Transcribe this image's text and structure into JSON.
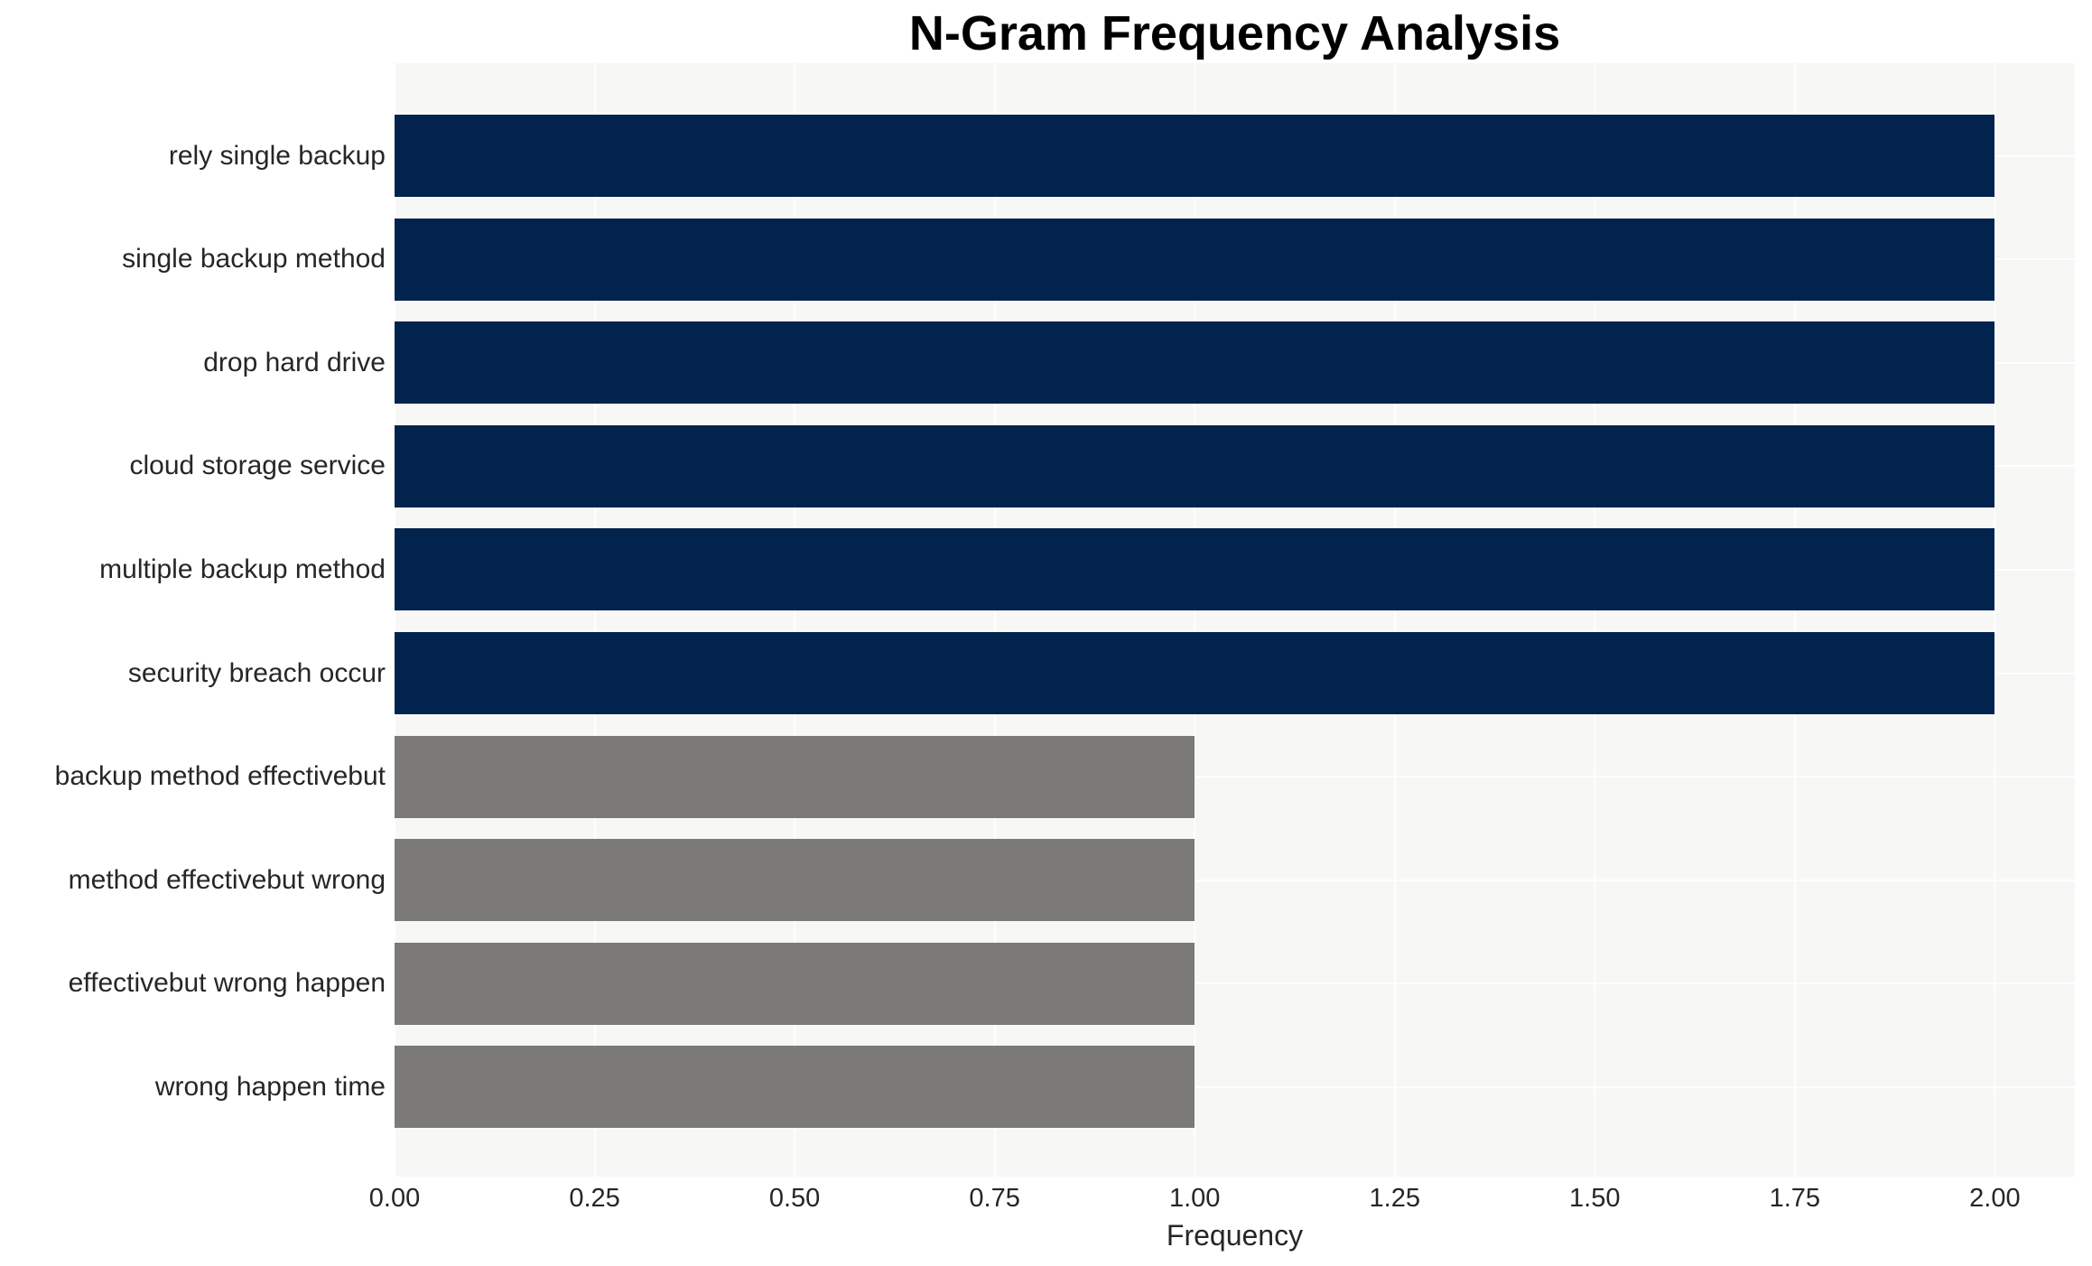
{
  "chart_data": {
    "type": "bar",
    "orientation": "horizontal",
    "title": "N-Gram Frequency Analysis",
    "xlabel": "Frequency",
    "ylabel": "",
    "categories": [
      "rely single backup",
      "single backup method",
      "drop hard drive",
      "cloud storage service",
      "multiple backup method",
      "security breach occur",
      "backup method effectivebut",
      "method effectivebut wrong",
      "effectivebut wrong happen",
      "wrong happen time"
    ],
    "values": [
      2,
      2,
      2,
      2,
      2,
      2,
      1,
      1,
      1,
      1
    ],
    "bar_colors": [
      "#02234d",
      "#02234d",
      "#02234d",
      "#02234d",
      "#02234d",
      "#02234d",
      "#7b7a78",
      "#7b7a78",
      "#7b7a78",
      "#7b7a78"
    ],
    "xlim": [
      0,
      2.1
    ],
    "xtick_values": [
      0,
      0.25,
      0.5,
      0.75,
      1.0,
      1.25,
      1.5,
      1.75,
      2.0
    ],
    "xtick_labels": [
      "0.00",
      "0.25",
      "0.50",
      "0.75",
      "1.00",
      "1.25",
      "1.50",
      "1.75",
      "2.00"
    ],
    "grid": true,
    "legend_position": "none",
    "colors": {
      "navy_bar": "#02234d",
      "gray_bar": "#7b7a78",
      "plot_background": "#f7f7f6",
      "gridline": "#ffffff",
      "tick_text": "#262626",
      "title_text": "#000000",
      "page_background": "#ffffff"
    }
  }
}
